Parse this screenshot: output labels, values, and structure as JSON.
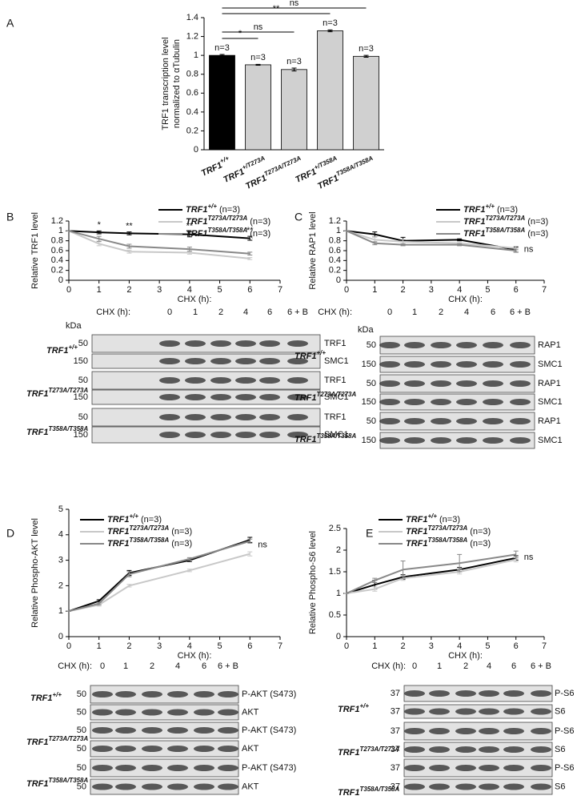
{
  "panels": [
    "A",
    "B",
    "C",
    "D",
    "E"
  ],
  "chart_data": [
    {
      "type": "bar",
      "ylabel": [
        "TRF1 transcription level",
        "normalized to αTubulin"
      ],
      "categories": [
        "TRF1+/+",
        "TRF1+/T273A",
        "TRF1T273A/T273A",
        "TRF1+/T358A",
        "TRF1T358A/T358A"
      ],
      "values": [
        1.0,
        0.9,
        0.85,
        1.26,
        0.99
      ],
      "errors": [
        0.01,
        0.005,
        0.015,
        0.01,
        0.01
      ],
      "colors": [
        "#000000",
        "#d0d0d0",
        "#d0d0d0",
        "#d0d0d0",
        "#d0d0d0"
      ],
      "bar_labels": [
        "n=3",
        "n=3",
        "n=3",
        "n=3",
        "n=3"
      ],
      "significance": [
        {
          "between": [
            "TRF1+/+",
            "TRF1+/T273A"
          ],
          "label": "*"
        },
        {
          "between": [
            "TRF1+/+",
            "TRF1T273A/T273A"
          ],
          "label": "ns"
        },
        {
          "between": [
            "TRF1+/+",
            "TRF1+/T358A"
          ],
          "label": "**"
        },
        {
          "between": [
            "TRF1+/+",
            "TRF1T358A/T358A"
          ],
          "label": "ns"
        }
      ],
      "ylim": [
        0,
        1.4
      ],
      "yticks": [
        0,
        0.2,
        0.4,
        0.6,
        0.8,
        1,
        1.2,
        1.4
      ]
    },
    {
      "type": "line",
      "ylabel": "Relative TRF1 level",
      "xlabel": "CHX (h):",
      "x": [
        0,
        1,
        2,
        4,
        6
      ],
      "xlim": [
        0,
        7
      ],
      "xticks": [
        0,
        1,
        2,
        3,
        4,
        5,
        6,
        7
      ],
      "ylim": [
        0,
        1.2
      ],
      "yticks": [
        0,
        0.2,
        0.4,
        0.6,
        0.8,
        1,
        1.2
      ],
      "series": [
        {
          "name": "TRF1+/+ (n=3)",
          "color": "#000000",
          "values": [
            1,
            0.97,
            0.95,
            0.93,
            0.85
          ],
          "errors": [
            0,
            0.03,
            0.03,
            0.05,
            0.04
          ],
          "point_labels": [
            null,
            "*",
            "**",
            "**",
            "**"
          ]
        },
        {
          "name": "TRF1T273A/T273A (n=3)",
          "color": "#c8c8c8",
          "values": [
            1,
            0.74,
            0.58,
            0.56,
            0.44
          ],
          "errors": [
            0,
            0.04,
            0.03,
            0.03,
            0.02
          ]
        },
        {
          "name": "TRF1T358A/T358A (n=3)",
          "color": "#888888",
          "values": [
            1,
            0.84,
            0.69,
            0.63,
            0.54
          ],
          "errors": [
            0,
            0.05,
            0.04,
            0.04,
            0.03
          ]
        }
      ]
    },
    {
      "type": "line",
      "ylabel": "Relative RAP1 level",
      "xlabel": "CHX (h):",
      "annotation": "ns",
      "x": [
        0,
        1,
        2,
        4,
        6
      ],
      "xlim": [
        0,
        7
      ],
      "xticks": [
        0,
        1,
        2,
        3,
        4,
        5,
        6,
        7
      ],
      "ylim": [
        0,
        1.2
      ],
      "yticks": [
        0,
        0.2,
        0.4,
        0.6,
        0.8,
        1,
        1.2
      ],
      "series": [
        {
          "name": "TRF1+/+ (n=3)",
          "color": "#000000",
          "values": [
            1,
            0.93,
            0.8,
            0.82,
            0.62
          ],
          "errors": [
            0,
            0.05,
            0.07,
            0.02,
            0.05
          ]
        },
        {
          "name": "TRF1T273A/T273A (n=3)",
          "color": "#c8c8c8",
          "values": [
            1,
            0.82,
            0.78,
            0.75,
            0.65
          ],
          "errors": [
            0,
            0.06,
            0.05,
            0.03,
            0.04
          ]
        },
        {
          "name": "TRF1T358A/T358A (n=3)",
          "color": "#888888",
          "values": [
            1,
            0.75,
            0.72,
            0.72,
            0.6
          ],
          "errors": [
            0,
            0.03,
            0.02,
            0.02,
            0.03
          ]
        }
      ]
    },
    {
      "type": "line",
      "ylabel": "Relative Phospho-AKT level",
      "xlabel": "CHX (h):",
      "annotation": "ns",
      "x": [
        0,
        1,
        2,
        4,
        6
      ],
      "xlim": [
        0,
        7
      ],
      "xticks": [
        0,
        1,
        2,
        3,
        4,
        5,
        6,
        7
      ],
      "ylim": [
        0,
        5
      ],
      "yticks": [
        0,
        1,
        2,
        3,
        4,
        5
      ],
      "series": [
        {
          "name": "TRF1+/+ (n=3)",
          "color": "#000000",
          "values": [
            1,
            1.4,
            2.5,
            3.0,
            3.8
          ],
          "errors": [
            0,
            0.05,
            0.1,
            0.05,
            0.1
          ]
        },
        {
          "name": "TRF1T273A/T273A (n=3)",
          "color": "#c8c8c8",
          "values": [
            1,
            1.25,
            2.0,
            2.6,
            3.25
          ],
          "errors": [
            0,
            0.05,
            0.05,
            0.05,
            0.08
          ]
        },
        {
          "name": "TRF1T358A/T358A (n=3)",
          "color": "#888888",
          "values": [
            1,
            1.3,
            2.45,
            3.05,
            3.75
          ],
          "errors": [
            0,
            0.05,
            0.1,
            0.05,
            0.08
          ]
        }
      ]
    },
    {
      "type": "line",
      "ylabel": "Relative Phospho-S6 level",
      "xlabel": "CHX (h):",
      "annotation": "ns",
      "x": [
        0,
        1,
        2,
        4,
        6
      ],
      "xlim": [
        0,
        7
      ],
      "xticks": [
        0,
        1,
        2,
        3,
        4,
        5,
        6,
        7
      ],
      "ylim": [
        0,
        2.5
      ],
      "yticks": [
        0,
        0.5,
        1,
        1.5,
        2,
        2.5
      ],
      "series": [
        {
          "name": "TRF1+/+ (n=3)",
          "color": "#000000",
          "values": [
            1,
            1.2,
            1.38,
            1.55,
            1.82
          ],
          "errors": [
            0,
            0.1,
            0.05,
            0.05,
            0.05
          ]
        },
        {
          "name": "TRF1T273A/T273A (n=3)",
          "color": "#c8c8c8",
          "values": [
            1,
            1.1,
            1.35,
            1.5,
            1.78
          ],
          "errors": [
            0,
            0.05,
            0.05,
            0.05,
            0.05
          ]
        },
        {
          "name": "TRF1T358A/T358A (n=3)",
          "color": "#888888",
          "values": [
            1,
            1.3,
            1.55,
            1.7,
            1.9
          ],
          "errors": [
            0,
            0.05,
            0.2,
            0.2,
            0.08
          ]
        }
      ]
    }
  ],
  "blots": [
    {
      "header": "CHX (h):",
      "lanes": [
        "0",
        "1",
        "2",
        "4",
        "6",
        "6 + B"
      ],
      "kda": "kDa",
      "groups": [
        {
          "genotype": "TRF1+/+",
          "rows": [
            {
              "mw": "50",
              "label": "TRF1"
            },
            {
              "mw": "150",
              "label": "SMC1"
            }
          ]
        },
        {
          "genotype": "TRF1T273A/T273A",
          "rows": [
            {
              "mw": "50",
              "label": "TRF1"
            },
            {
              "mw": "150",
              "label": "SMC1"
            }
          ]
        },
        {
          "genotype": "TRF1T358A/T358A",
          "rows": [
            {
              "mw": "50",
              "label": "TRF1"
            },
            {
              "mw": "150",
              "label": "SMC1"
            }
          ]
        }
      ]
    },
    {
      "header": "CHX (h):",
      "lanes": [
        "0",
        "1",
        "2",
        "4",
        "6",
        "6 + B"
      ],
      "kda": "kDa",
      "groups": [
        {
          "genotype": "TRF1+/+",
          "rows": [
            {
              "mw": "50",
              "label": "RAP1"
            },
            {
              "mw": "150",
              "label": "SMC1"
            }
          ]
        },
        {
          "genotype": "TRF1T273A/T273A",
          "rows": [
            {
              "mw": "50",
              "label": "RAP1"
            },
            {
              "mw": "150",
              "label": "SMC1"
            }
          ]
        },
        {
          "genotype": "TRF1T358A/T358A",
          "rows": [
            {
              "mw": "50",
              "label": "RAP1"
            },
            {
              "mw": "150",
              "label": "SMC1"
            }
          ]
        }
      ]
    },
    {
      "header": "CHX (h):",
      "lanes": [
        "0",
        "1",
        "2",
        "4",
        "6",
        "6 + B"
      ],
      "groups": [
        {
          "genotype": "TRF1+/+",
          "rows": [
            {
              "mw": "50",
              "label": "P-AKT (S473)"
            },
            {
              "mw": "50",
              "label": "AKT"
            }
          ]
        },
        {
          "genotype": "TRF1T273A/T273A",
          "rows": [
            {
              "mw": "50",
              "label": "P-AKT (S473)"
            },
            {
              "mw": "50",
              "label": "AKT"
            }
          ]
        },
        {
          "genotype": "TRF1T358A/T358A",
          "rows": [
            {
              "mw": "50",
              "label": "P-AKT (S473)"
            },
            {
              "mw": "50",
              "label": "AKT"
            }
          ]
        }
      ]
    },
    {
      "header": "CHX (h):",
      "lanes": [
        "0",
        "1",
        "2",
        "4",
        "6",
        "6 + B"
      ],
      "groups": [
        {
          "genotype": "TRF1+/+",
          "rows": [
            {
              "mw": "37",
              "label": "P-S6"
            },
            {
              "mw": "37",
              "label": "S6"
            }
          ]
        },
        {
          "genotype": "TRF1T273A/T273A",
          "rows": [
            {
              "mw": "37",
              "label": "P-S6"
            },
            {
              "mw": "37",
              "label": "S6"
            }
          ]
        },
        {
          "genotype": "TRF1T358A/T358A",
          "rows": [
            {
              "mw": "37",
              "label": "P-S6"
            },
            {
              "mw": "37",
              "label": "S6"
            }
          ]
        }
      ]
    }
  ]
}
